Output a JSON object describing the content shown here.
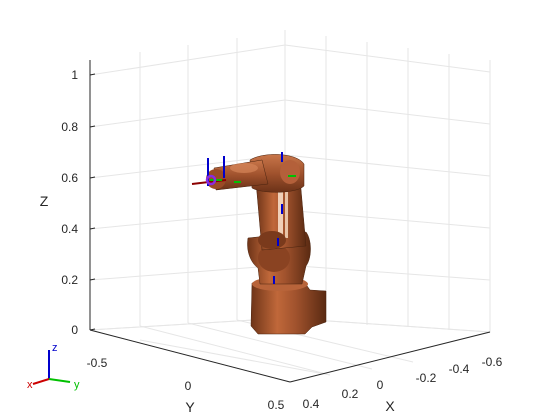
{
  "figure": {
    "axes": {
      "z": {
        "label": "Z",
        "ticks": [
          "0",
          "0.2",
          "0.4",
          "0.6",
          "0.8",
          "1"
        ]
      },
      "y": {
        "label": "Y",
        "ticks": [
          "-0.5",
          "0",
          "0.5"
        ]
      },
      "x": {
        "label": "X",
        "ticks": [
          "0.4",
          "0.2",
          "0",
          "-0.2",
          "-0.4",
          "-0.6"
        ]
      }
    },
    "triad": {
      "x_label": "x",
      "y_label": "y",
      "z_label": "z"
    },
    "colors": {
      "robot_body": "#a0522d",
      "frame_x": "#8b0000",
      "frame_y": "#00c000",
      "frame_z": "#0000cc",
      "end_effector": "#8a2be2",
      "grid": "#e6e6e6",
      "axis": "#262626"
    }
  }
}
